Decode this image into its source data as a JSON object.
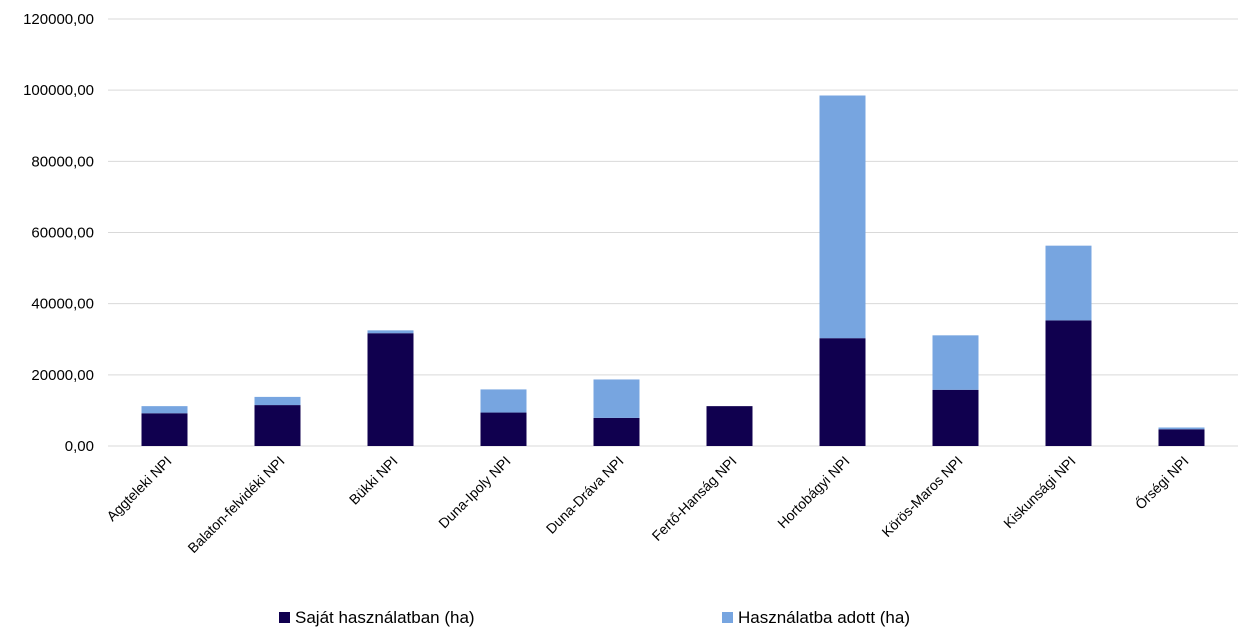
{
  "chart_data": {
    "type": "bar",
    "stacked": true,
    "categories": [
      "Aggteleki NPI",
      "Balaton-felvidéki NPI",
      "Bükki NPI",
      "Duna-Ipoly NPI",
      "Duna-Dráva NPI",
      "Fertő-Hanság NPI",
      "Hortobágyi NPI",
      "Körös-Maros NPI",
      "Kiskunsági NPI",
      "Őrségi NPI"
    ],
    "series": [
      {
        "name": "Saját használatban (ha)",
        "color": "#10004f",
        "values": [
          9200,
          11500,
          31700,
          9400,
          7900,
          11200,
          30300,
          15800,
          35300,
          4700
        ]
      },
      {
        "name": "Használatba adott (ha)",
        "color": "#77a5e0",
        "values": [
          2000,
          2300,
          800,
          6500,
          10800,
          0,
          68200,
          15300,
          21000,
          500
        ]
      }
    ],
    "yticks": [
      "0,00",
      "20000,00",
      "40000,00",
      "60000,00",
      "80000,00",
      "100000,00",
      "120000,00"
    ],
    "ylim": [
      0,
      120000
    ],
    "grid": true,
    "legend_position": "bottom"
  }
}
